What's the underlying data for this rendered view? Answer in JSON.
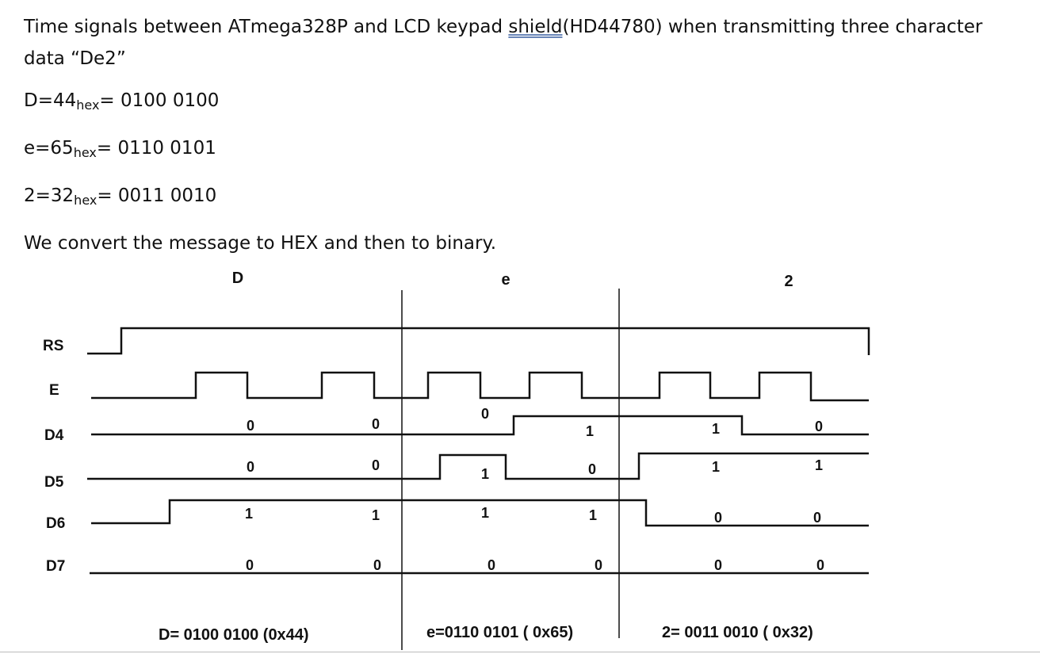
{
  "title": {
    "line1_before": "Time signals between ATmega328P and LCD keypad ",
    "line1_underlined": "shield",
    "line1_after": "(HD44780) when transmitting three character",
    "line2": "data “De2”"
  },
  "equations": [
    {
      "lhs": "D=44",
      "sub": "hex",
      "rhs": "= 0100 0100"
    },
    {
      "lhs": "e=65",
      "sub": "hex",
      "rhs": "= 0110 0101"
    },
    {
      "lhs": "2=32",
      "sub": "hex",
      "rhs": "= 0011 0010"
    }
  ],
  "sentence": "We convert the message to HEX and then to binary.",
  "diagram": {
    "char_headers": [
      "D",
      "e",
      "2"
    ],
    "signals": [
      "RS",
      "E",
      "D4",
      "D5",
      "D6",
      "D7"
    ],
    "bit_labels": {
      "D4": [
        "0",
        "0",
        "0",
        "1",
        "1",
        "0"
      ],
      "D5": [
        "0",
        "0",
        "1",
        "0",
        "1",
        "1"
      ],
      "D6": [
        "1",
        "1",
        "1",
        "1",
        "0",
        "0"
      ],
      "D7": [
        "0",
        "0",
        "0",
        "0",
        "0",
        "0"
      ]
    },
    "captions": [
      "D= 0100 0100  (0x44)",
      "e=0110 0101 ( 0x65)",
      "2= 0011 0010 ( 0x32)"
    ]
  }
}
